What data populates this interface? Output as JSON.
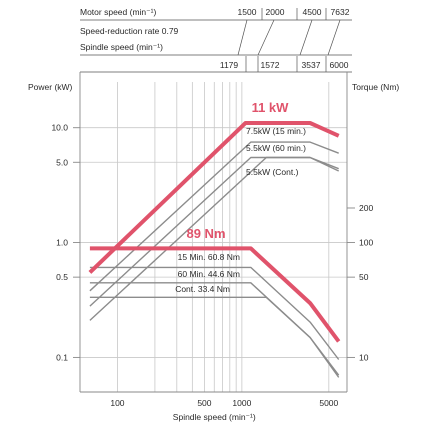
{
  "chart_data": {
    "type": "line",
    "scale": "log-log",
    "header": {
      "motor_speed_label": "Motor speed (min⁻¹)",
      "motor_speed_values": [
        "1500",
        "2000",
        "4500",
        "7632"
      ],
      "reduction_label": "Speed-reduction rate 0.79",
      "spindle_speed_label": "Spindle speed (min⁻¹)",
      "spindle_speed_values": [
        "1179",
        "1572",
        "3537",
        "6000"
      ]
    },
    "left_axis_label": "Power (kW)",
    "right_axis_label": "Torque (Nm)",
    "xlabel": "Spindle speed (min⁻¹)",
    "xlim": [
      50,
      7000
    ],
    "power_ylim": [
      0.05,
      25
    ],
    "torque_ylim": [
      5,
      2500
    ],
    "x_tick_labels": [
      "100",
      "500",
      "1000",
      "5000"
    ],
    "x_ticks": [
      100,
      500,
      1000,
      5000
    ],
    "x_grid": [
      100,
      200,
      300,
      400,
      500,
      600,
      700,
      800,
      900,
      1000,
      5000
    ],
    "power_tick_labels": [
      "10.0",
      "5.0",
      "1.0",
      "0.5",
      "0.1"
    ],
    "power_ticks": [
      10,
      5,
      1,
      0.5,
      0.1
    ],
    "torque_tick_labels": [
      "200",
      "100",
      "50",
      "10"
    ],
    "torque_ticks": [
      200,
      100,
      50,
      10
    ],
    "grid": true,
    "colors": {
      "highlight": "#e0536b",
      "secondary": "#8c8c8c",
      "grid": "#c8c8c8"
    },
    "power_series": [
      {
        "name": "11 kW",
        "x": [
          60,
          1070,
          3537,
          6000
        ],
        "y": [
          0.55,
          11,
          11,
          8.5
        ],
        "highlight": true
      },
      {
        "name": "7.5kW (15 min.)",
        "x": [
          60,
          1179,
          3537,
          6000
        ],
        "y": [
          0.38,
          7.5,
          7.5,
          6.0
        ],
        "highlight": false
      },
      {
        "name": "5.5kW (60 min.)",
        "x": [
          60,
          1179,
          3537,
          6000
        ],
        "y": [
          0.28,
          5.5,
          5.5,
          4.4
        ],
        "highlight": false
      },
      {
        "name": "5.5kW (Cont.)",
        "x": [
          60,
          1572,
          3537,
          6000
        ],
        "y": [
          0.21,
          5.5,
          5.5,
          4.2
        ],
        "highlight": false
      }
    ],
    "torque_series": [
      {
        "name": "89 Nm",
        "x": [
          60,
          1179,
          3537,
          6000
        ],
        "y": [
          89,
          89,
          29.7,
          13.8
        ],
        "highlight": true
      },
      {
        "name": "15 Min. 60.8 Nm",
        "x": [
          60,
          1179,
          3537,
          6000
        ],
        "y": [
          60.8,
          60.8,
          20.3,
          9.6
        ],
        "highlight": false
      },
      {
        "name": "60 Min. 44.6 Nm",
        "x": [
          60,
          1179,
          3537,
          6000
        ],
        "y": [
          44.6,
          44.6,
          14.9,
          7.0
        ],
        "highlight": false
      },
      {
        "name": "Cont. 33.4 Nm",
        "x": [
          60,
          1572,
          3537,
          6000
        ],
        "y": [
          33.4,
          33.4,
          14.9,
          6.7
        ],
        "highlight": false
      }
    ],
    "big_labels": [
      "11 kW",
      "89 Nm"
    ]
  }
}
